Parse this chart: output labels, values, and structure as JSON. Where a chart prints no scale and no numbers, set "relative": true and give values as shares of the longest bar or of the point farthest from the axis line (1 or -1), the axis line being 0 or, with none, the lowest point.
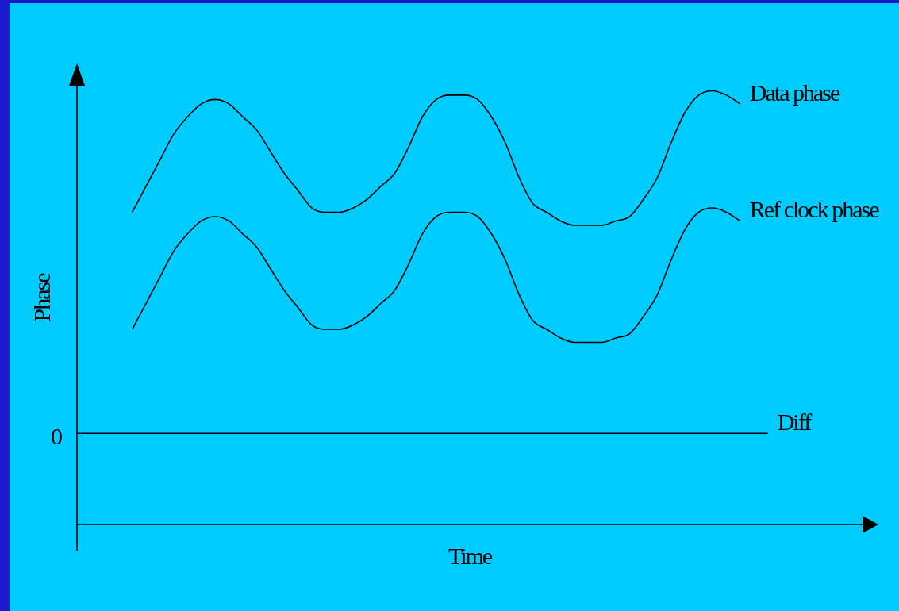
{
  "chart_data": {
    "type": "line",
    "relative": true,
    "xlabel": "Time",
    "ylabel": "Phase",
    "legend": false,
    "marker": "none",
    "line_style": "solid",
    "categories": [
      null,
      null,
      null,
      null,
      null,
      null,
      null,
      null,
      null,
      null,
      null,
      null,
      null,
      null,
      null,
      null,
      null,
      null,
      null,
      null,
      null,
      null,
      null,
      null,
      null,
      null,
      null,
      null,
      null,
      null,
      null,
      null,
      null,
      null,
      null,
      null,
      null,
      null,
      null,
      null,
      null,
      null,
      null,
      null,
      null,
      null,
      null,
      null,
      null,
      null,
      null,
      null,
      null,
      null,
      null,
      null,
      null,
      null,
      null
    ],
    "series": [
      {
        "name": "Data phase",
        "color": "#000000",
        "values": [
          null,
          null,
          null,
          null,
          0.72,
          0.78,
          0.84,
          0.9,
          0.94,
          0.97,
          0.98,
          0.97,
          0.94,
          0.91,
          0.86,
          0.81,
          0.77,
          0.73,
          0.72,
          0.72,
          0.73,
          0.75,
          0.78,
          0.81,
          0.87,
          0.94,
          0.98,
          0.99,
          0.99,
          0.98,
          0.94,
          0.88,
          0.8,
          0.74,
          0.72,
          0.7,
          0.69,
          0.69,
          0.69,
          0.7,
          0.71,
          0.75,
          0.8,
          0.88,
          0.95,
          0.99,
          1.0,
          0.99,
          0.97,
          null,
          null,
          null,
          null,
          null,
          null,
          null,
          null,
          null,
          null
        ]
      },
      {
        "name": "Ref clock phase",
        "color": "#000000",
        "values": [
          null,
          null,
          null,
          null,
          0.45,
          0.51,
          0.57,
          0.63,
          0.67,
          0.7,
          0.71,
          0.7,
          0.67,
          0.64,
          0.59,
          0.54,
          0.5,
          0.46,
          0.45,
          0.45,
          0.46,
          0.48,
          0.51,
          0.54,
          0.6,
          0.67,
          0.71,
          0.72,
          0.72,
          0.71,
          0.67,
          0.61,
          0.53,
          0.47,
          0.45,
          0.43,
          0.42,
          0.42,
          0.42,
          0.43,
          0.44,
          0.48,
          0.53,
          0.61,
          0.68,
          0.72,
          0.73,
          0.72,
          0.7,
          null,
          null,
          null,
          null,
          null,
          null,
          null,
          null,
          null,
          null
        ]
      },
      {
        "name": "Diff",
        "color": "#000000",
        "values": [
          0.21,
          0.21,
          0.21,
          0.21,
          0.21,
          0.21,
          0.21,
          0.21,
          0.21,
          0.21,
          0.21,
          0.21,
          0.21,
          0.21,
          0.21,
          0.21,
          0.21,
          0.21,
          0.21,
          0.21,
          0.21,
          0.21,
          0.21,
          0.21,
          0.21,
          0.21,
          0.21,
          0.21,
          0.21,
          0.21,
          0.21,
          0.21,
          0.21,
          0.21,
          0.21,
          0.21,
          0.21,
          0.21,
          0.21,
          0.21,
          0.21,
          0.21,
          0.21,
          0.21,
          0.21,
          0.21,
          0.21,
          0.21,
          0.21,
          0.21,
          0.21,
          null,
          null,
          null,
          null,
          null,
          null,
          null,
          null
        ]
      }
    ],
    "annotations": [
      "0"
    ]
  }
}
